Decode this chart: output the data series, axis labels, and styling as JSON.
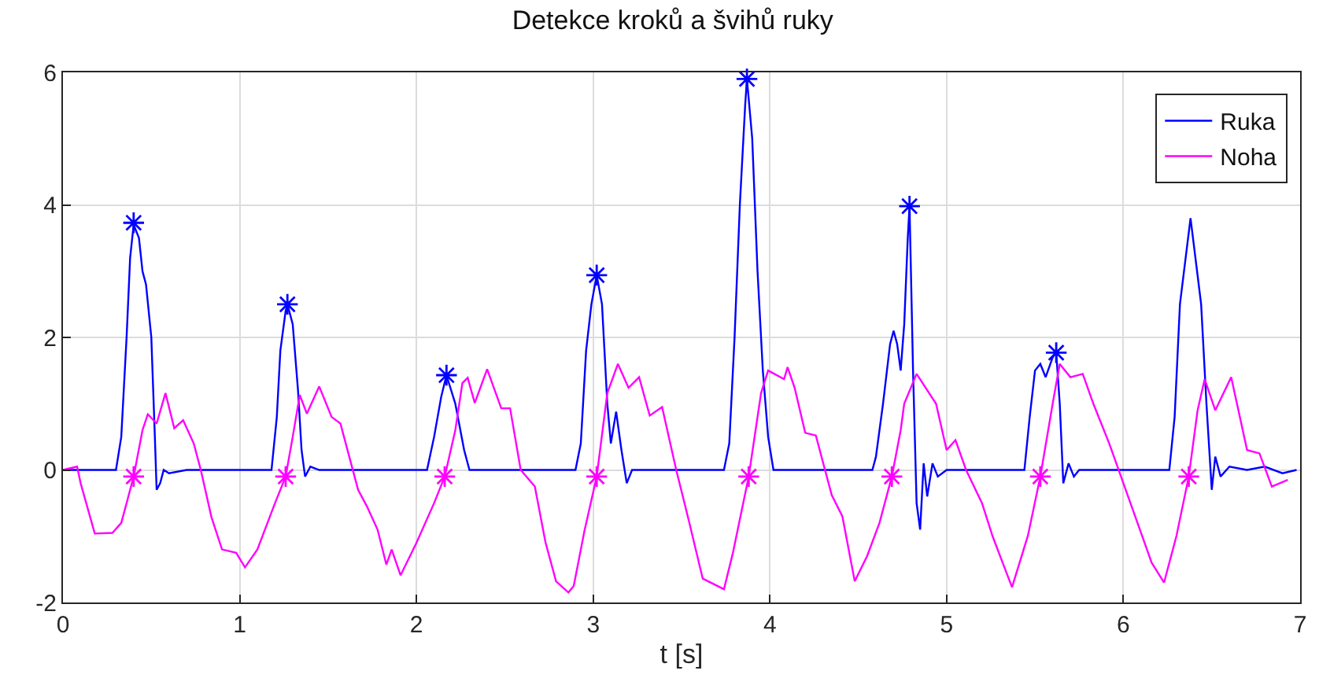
{
  "chart_data": {
    "type": "line",
    "title": "Detekce kroků a švihů ruky",
    "xlabel": "t [s]",
    "xlim": [
      0,
      7
    ],
    "xticks": [
      0,
      1,
      2,
      3,
      4,
      5,
      6,
      7
    ],
    "ylim": [
      -2,
      6
    ],
    "yticks": [
      -2,
      0,
      2,
      4,
      6
    ],
    "grid": true,
    "legend": "top right",
    "series": [
      {
        "name": "Ruka",
        "color": "#0000ff",
        "marker": "none",
        "x": [
          0,
          0.3,
          0.33,
          0.36,
          0.38,
          0.4,
          0.43,
          0.45,
          0.47,
          0.5,
          0.52,
          0.53,
          0.55,
          0.57,
          0.6,
          0.7,
          1.18,
          1.21,
          1.23,
          1.26,
          1.27,
          1.3,
          1.33,
          1.35,
          1.37,
          1.4,
          1.45,
          2.06,
          2.1,
          2.14,
          2.17,
          2.22,
          2.27,
          2.3,
          2.9,
          2.93,
          2.96,
          2.99,
          3.02,
          3.05,
          3.08,
          3.1,
          3.13,
          3.16,
          3.19,
          3.22,
          3.74,
          3.77,
          3.8,
          3.83,
          3.86,
          3.87,
          3.9,
          3.93,
          3.96,
          3.99,
          4.02,
          4.58,
          4.6,
          4.64,
          4.68,
          4.7,
          4.72,
          4.74,
          4.76,
          4.78,
          4.79,
          4.81,
          4.83,
          4.85,
          4.87,
          4.89,
          4.92,
          4.95,
          5.0,
          5.44,
          5.47,
          5.5,
          5.53,
          5.56,
          5.6,
          5.62,
          5.64,
          5.66,
          5.69,
          5.72,
          5.75,
          6.26,
          6.29,
          6.32,
          6.38,
          6.44,
          6.47,
          6.5,
          6.52,
          6.55,
          6.6,
          6.7,
          6.8,
          6.9,
          6.98
        ],
        "values": [
          0,
          0,
          0.5,
          2.0,
          3.2,
          3.7,
          3.5,
          3.0,
          2.8,
          2.0,
          0.5,
          -0.3,
          -0.2,
          0,
          -0.05,
          0,
          0,
          0.8,
          1.8,
          2.4,
          2.5,
          2.2,
          1.2,
          0.3,
          -0.1,
          0.05,
          0,
          0,
          0.5,
          1.1,
          1.43,
          1.0,
          0.3,
          0,
          0,
          0.4,
          1.8,
          2.5,
          2.94,
          2.5,
          1.0,
          0.4,
          0.88,
          0.3,
          -0.2,
          0,
          0,
          0.4,
          2.0,
          4.0,
          5.5,
          5.9,
          5.0,
          3.0,
          1.5,
          0.5,
          0,
          0,
          0.2,
          1.0,
          1.9,
          2.1,
          1.9,
          1.5,
          2.2,
          3.5,
          3.98,
          1.5,
          -0.5,
          -0.9,
          0.1,
          -0.4,
          0.1,
          -0.1,
          0,
          0,
          0.8,
          1.5,
          1.6,
          1.4,
          1.7,
          1.77,
          1.0,
          -0.2,
          0.1,
          -0.1,
          0,
          0,
          0.8,
          2.5,
          3.8,
          2.5,
          1.0,
          -0.3,
          0.2,
          -0.1,
          0.05,
          0,
          0.05,
          -0.05,
          0
        ]
      },
      {
        "name": "Noha",
        "color": "#ff00ff",
        "marker": "none",
        "x": [
          0,
          0.08,
          0.1,
          0.18,
          0.28,
          0.33,
          0.37,
          0.4,
          0.45,
          0.48,
          0.53,
          0.58,
          0.63,
          0.68,
          0.74,
          0.78,
          0.84,
          0.9,
          0.98,
          1.03,
          1.1,
          1.2,
          1.26,
          1.3,
          1.34,
          1.38,
          1.45,
          1.52,
          1.57,
          1.62,
          1.67,
          1.72,
          1.78,
          1.83,
          1.86,
          1.91,
          2.0,
          2.1,
          2.16,
          2.22,
          2.26,
          2.29,
          2.33,
          2.4,
          2.48,
          2.53,
          2.59,
          2.67,
          2.73,
          2.79,
          2.86,
          2.89,
          2.95,
          3.02,
          3.08,
          3.14,
          3.2,
          3.26,
          3.32,
          3.39,
          3.47,
          3.54,
          3.62,
          3.74,
          3.79,
          3.88,
          3.95,
          3.99,
          4.08,
          4.1,
          4.14,
          4.2,
          4.26,
          4.35,
          4.41,
          4.48,
          4.55,
          4.62,
          4.69,
          4.74,
          4.76,
          4.83,
          4.94,
          5.0,
          5.05,
          5.11,
          5.2,
          5.26,
          5.37,
          5.46,
          5.53,
          5.6,
          5.64,
          5.7,
          5.77,
          5.83,
          5.92,
          6.0,
          6.08,
          6.16,
          6.23,
          6.3,
          6.37,
          6.42,
          6.46,
          6.52,
          6.61,
          6.7,
          6.77,
          6.84,
          6.93
        ],
        "values": [
          0,
          0.05,
          -0.2,
          -0.96,
          -0.95,
          -0.8,
          -0.4,
          -0.1,
          0.6,
          0.84,
          0.7,
          1.16,
          0.63,
          0.75,
          0.4,
          0,
          -0.71,
          -1.2,
          -1.25,
          -1.47,
          -1.2,
          -0.5,
          -0.1,
          0.5,
          1.13,
          0.85,
          1.26,
          0.8,
          0.7,
          0.2,
          -0.3,
          -0.55,
          -0.9,
          -1.43,
          -1.2,
          -1.59,
          -1.1,
          -0.5,
          -0.1,
          0.6,
          1.31,
          1.39,
          1.01,
          1.52,
          0.93,
          0.93,
          0,
          -0.25,
          -1.09,
          -1.68,
          -1.85,
          -1.75,
          -0.93,
          -0.1,
          1.16,
          1.6,
          1.24,
          1.4,
          0.82,
          0.95,
          0,
          -0.75,
          -1.64,
          -1.8,
          -1.26,
          -0.1,
          1.16,
          1.5,
          1.37,
          1.55,
          1.24,
          0.56,
          0.52,
          -0.38,
          -0.7,
          -1.68,
          -1.3,
          -0.8,
          -0.1,
          0.6,
          1.0,
          1.45,
          1.0,
          0.3,
          0.45,
          0,
          -0.5,
          -1.0,
          -1.77,
          -0.99,
          -0.1,
          1.0,
          1.6,
          1.4,
          1.45,
          1.0,
          0.4,
          -0.2,
          -0.8,
          -1.4,
          -1.7,
          -1.0,
          -0.1,
          0.9,
          1.37,
          0.9,
          1.4,
          0.3,
          0.25,
          -0.25,
          -0.15
        ]
      },
      {
        "color": "#0000ff",
        "type": "scatter",
        "marker": "cross",
        "x": [
          0.4,
          1.27,
          2.17,
          3.02,
          3.87,
          4.79,
          5.62
        ],
        "values": [
          3.73,
          2.5,
          1.43,
          2.94,
          5.9,
          3.98,
          1.77
        ]
      },
      {
        "color": "#ff00ff",
        "type": "scatter",
        "marker": "cross",
        "x": [
          0.4,
          1.26,
          2.16,
          3.02,
          3.88,
          4.69,
          5.53,
          6.37
        ],
        "values": [
          -0.1,
          -0.1,
          -0.1,
          -0.1,
          -0.1,
          -0.1,
          -0.1,
          -0.1
        ]
      }
    ]
  }
}
